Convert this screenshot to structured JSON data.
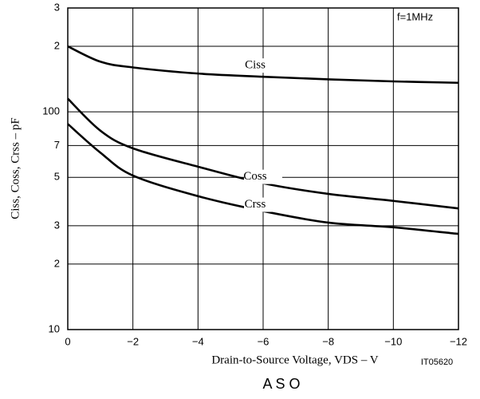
{
  "chart_data": {
    "type": "line",
    "xlabel": "Drain-to-Source Voltage, VDS – V",
    "ylabel": "Ciss,  Coss,  Crss  –  pF",
    "annotation": "f=1MHz",
    "figure_id": "IT05620",
    "next_title": "A S O",
    "x": [
      0,
      -1,
      -2,
      -4,
      -6,
      -8,
      -10,
      -12
    ],
    "series": [
      {
        "name": "Ciss",
        "color": "#000000",
        "values": [
          200,
          170,
          160,
          150,
          145,
          141,
          138,
          136
        ]
      },
      {
        "name": "Coss",
        "color": "#000000",
        "values": [
          115,
          82,
          68,
          56,
          47,
          42,
          39,
          36
        ]
      },
      {
        "name": "Crss",
        "color": "#000000",
        "values": [
          88,
          65,
          51,
          41,
          35,
          31,
          29.5,
          27.5
        ]
      }
    ],
    "xlim": [
      0,
      -12
    ],
    "xticks": [
      0,
      {
        "value": -2,
        "label": "−2"
      },
      {
        "value": -4,
        "label": "−4"
      },
      {
        "value": -6,
        "label": "−6"
      },
      {
        "value": -8,
        "label": "−8"
      },
      {
        "value": -10,
        "label": "−10"
      },
      {
        "value": -12,
        "label": "−12"
      }
    ],
    "ylim": [
      10,
      300
    ],
    "yticks": [
      10,
      {
        "value": 20,
        "label": "2"
      },
      {
        "value": 30,
        "label": "3"
      },
      {
        "value": 50,
        "label": "5"
      },
      {
        "value": 70,
        "label": "7"
      },
      100,
      {
        "value": 200,
        "label": "2"
      },
      {
        "value": 300,
        "label": "3"
      }
    ],
    "y_log": true,
    "grid": true
  }
}
